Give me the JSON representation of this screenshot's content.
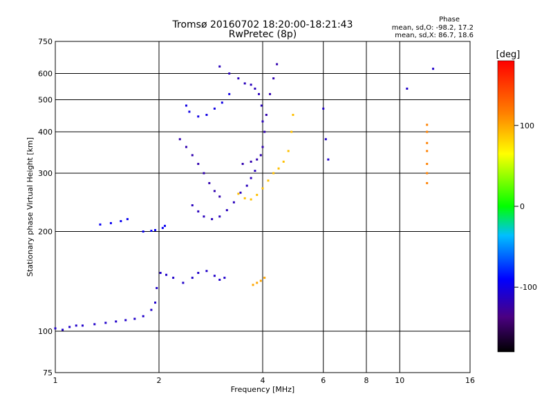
{
  "header": {
    "title": "Tromsø 20160702 18:20:00-18:21:43",
    "subtitle": "RwPretec (8p)"
  },
  "phase_info": {
    "heading": "Phase",
    "line_o": "mean, sd,O: -98.2, 17.2",
    "line_x": "mean, sd,X: 86.7, 18.6"
  },
  "colorbar": {
    "unit_label": "[deg]",
    "ticks": [
      "100",
      "0",
      "-100"
    ],
    "tick_values": [
      100,
      0,
      -100
    ],
    "range": [
      -180,
      180
    ]
  },
  "chart_data": {
    "type": "scatter",
    "title": "Tromsø 20160702 18:20:00-18:21:43",
    "subtitle": "RwPretec (8p)",
    "xlabel": "Frequency [MHz]",
    "ylabel": "Stationary phase Virtual Height [km]",
    "x_scale": "log",
    "y_scale": "log",
    "xlim": [
      1,
      16
    ],
    "ylim": [
      75,
      750
    ],
    "xticks": [
      1,
      2,
      4,
      6,
      8,
      10,
      16
    ],
    "xtick_labels": [
      "1",
      "2",
      "4",
      "6",
      "8",
      "10",
      "16"
    ],
    "yticks": [
      75,
      100,
      200,
      300,
      400,
      500,
      600,
      750
    ],
    "ytick_labels": [
      "75",
      "100",
      "200",
      "300",
      "400",
      "500",
      "600",
      "750"
    ],
    "grid": true,
    "series": [
      {
        "phase": -110,
        "points": [
          [
            1.0,
            102
          ],
          [
            1.05,
            101
          ],
          [
            1.1,
            103
          ],
          [
            1.15,
            104
          ],
          [
            1.2,
            104
          ],
          [
            1.3,
            105
          ],
          [
            1.4,
            106
          ],
          [
            1.5,
            107
          ],
          [
            1.6,
            108
          ],
          [
            1.7,
            109
          ],
          [
            1.8,
            111
          ],
          [
            1.9,
            116
          ],
          [
            1.95,
            122
          ],
          [
            1.97,
            135
          ]
        ]
      },
      {
        "phase": -95,
        "points": [
          [
            1.35,
            210
          ],
          [
            1.45,
            212
          ],
          [
            1.55,
            215
          ],
          [
            1.62,
            218
          ],
          [
            1.8,
            200
          ],
          [
            1.9,
            201
          ],
          [
            1.95,
            202
          ],
          [
            2.05,
            205
          ],
          [
            2.08,
            208
          ]
        ]
      },
      {
        "phase": -110,
        "points": [
          [
            2.02,
            150
          ],
          [
            2.1,
            148
          ],
          [
            2.2,
            145
          ],
          [
            2.35,
            140
          ],
          [
            2.5,
            145
          ],
          [
            2.6,
            150
          ],
          [
            2.75,
            152
          ],
          [
            2.9,
            147
          ],
          [
            3.0,
            143
          ],
          [
            3.1,
            145
          ]
        ]
      },
      {
        "phase": -100,
        "points": [
          [
            2.4,
            480
          ],
          [
            2.45,
            460
          ],
          [
            2.6,
            445
          ],
          [
            2.75,
            450
          ],
          [
            2.9,
            470
          ],
          [
            3.05,
            490
          ],
          [
            3.2,
            520
          ]
        ]
      },
      {
        "phase": -120,
        "points": [
          [
            2.3,
            380
          ],
          [
            2.4,
            360
          ],
          [
            2.5,
            340
          ],
          [
            2.6,
            320
          ],
          [
            2.7,
            300
          ],
          [
            2.8,
            280
          ],
          [
            2.9,
            265
          ],
          [
            3.0,
            255
          ]
        ]
      },
      {
        "phase": -115,
        "points": [
          [
            2.5,
            240
          ],
          [
            2.6,
            230
          ],
          [
            2.7,
            222
          ],
          [
            2.85,
            218
          ],
          [
            3.0,
            222
          ],
          [
            3.15,
            232
          ],
          [
            3.3,
            245
          ],
          [
            3.45,
            262
          ],
          [
            3.6,
            275
          ],
          [
            3.7,
            290
          ],
          [
            3.8,
            305
          ]
        ]
      },
      {
        "phase": -115,
        "points": [
          [
            3.0,
            630
          ],
          [
            3.2,
            600
          ],
          [
            3.4,
            580
          ],
          [
            3.55,
            560
          ],
          [
            3.7,
            555
          ],
          [
            3.8,
            540
          ],
          [
            3.9,
            520
          ],
          [
            3.97,
            480
          ],
          [
            4.0,
            430
          ]
        ]
      },
      {
        "phase": -120,
        "points": [
          [
            3.5,
            320
          ],
          [
            3.7,
            325
          ],
          [
            3.85,
            330
          ],
          [
            3.95,
            340
          ],
          [
            4.0,
            360
          ],
          [
            4.05,
            400
          ],
          [
            4.1,
            450
          ],
          [
            4.2,
            520
          ],
          [
            4.3,
            580
          ],
          [
            4.4,
            640
          ]
        ]
      },
      {
        "phase": 90,
        "points": [
          [
            3.4,
            260
          ],
          [
            3.55,
            252
          ],
          [
            3.7,
            250
          ],
          [
            3.85,
            258
          ],
          [
            4.0,
            270
          ],
          [
            4.15,
            285
          ],
          [
            4.3,
            300
          ],
          [
            4.45,
            310
          ],
          [
            4.6,
            325
          ],
          [
            4.75,
            350
          ],
          [
            4.85,
            400
          ],
          [
            4.9,
            450
          ]
        ]
      },
      {
        "phase": 100,
        "points": [
          [
            3.75,
            138
          ],
          [
            3.85,
            140
          ],
          [
            3.95,
            142
          ],
          [
            4.05,
            145
          ]
        ]
      },
      {
        "phase": -110,
        "points": [
          [
            6.0,
            470
          ],
          [
            6.1,
            380
          ],
          [
            6.2,
            330
          ],
          [
            10.5,
            540
          ],
          [
            12.5,
            620
          ]
        ]
      },
      {
        "phase": 115,
        "points": [
          [
            12.0,
            420
          ],
          [
            12.0,
            400
          ],
          [
            12.0,
            370
          ],
          [
            12.0,
            350
          ],
          [
            12.0,
            320
          ],
          [
            12.0,
            300
          ],
          [
            12.0,
            280
          ]
        ]
      }
    ]
  }
}
